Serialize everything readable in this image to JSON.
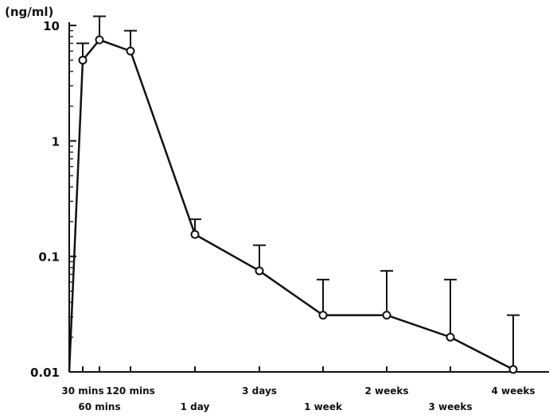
{
  "chart_data": {
    "type": "line",
    "title": "",
    "ylabel": "(ng/ml)",
    "xlabel": "",
    "yscale": "log",
    "ylim": [
      0.01,
      10
    ],
    "yticks": [
      {
        "value": 10,
        "label": "10"
      },
      {
        "value": 1,
        "label": "1"
      },
      {
        "value": 0.1,
        "label": "0.1"
      },
      {
        "value": 0.01,
        "label": "0.01"
      }
    ],
    "x": [
      "0",
      "30 mins",
      "60 mins",
      "120 mins",
      "1 day",
      "3 days",
      "1 week",
      "2 weeks",
      "3 weeks",
      "4 weeks"
    ],
    "xtick_labels": [
      {
        "label": "30 mins",
        "row": 1
      },
      {
        "label": "60 mins",
        "row": 2
      },
      {
        "label": "120 mins",
        "row": 1
      },
      {
        "label": "1 day",
        "row": 2
      },
      {
        "label": "3 days",
        "row": 1
      },
      {
        "label": "1 week",
        "row": 2
      },
      {
        "label": "2 weeks",
        "row": 1
      },
      {
        "label": "3 weeks",
        "row": 2
      },
      {
        "label": "4 weeks",
        "row": 1
      }
    ],
    "series": [
      {
        "values": [
          0.01,
          5,
          7.5,
          6,
          0.155,
          0.075,
          0.031,
          0.031,
          0.02,
          0.0105
        ],
        "error_upper": [
          null,
          7,
          12,
          9,
          0.21,
          0.125,
          0.063,
          0.075,
          0.063,
          0.031
        ]
      }
    ],
    "grid": false,
    "legend": "none"
  }
}
